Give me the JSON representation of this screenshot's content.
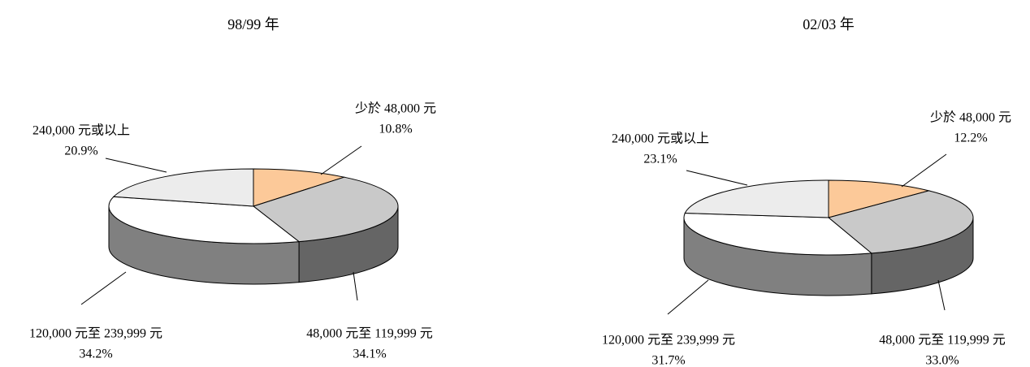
{
  "chart_data": [
    {
      "type": "pie",
      "title": "98/99 年",
      "categories": [
        "少於 48,000 元",
        "48,000 元至 119,999 元",
        "120,000 元至 239,999 元",
        "240,000 元或以上"
      ],
      "values": [
        10.8,
        34.1,
        34.2,
        20.9
      ],
      "value_labels": [
        "10.8%",
        "34.1%",
        "34.2%",
        "20.9%"
      ],
      "colors": [
        "#fcc999",
        "#c9c9c9",
        "#ffffff",
        "#ececec"
      ]
    },
    {
      "type": "pie",
      "title": "02/03 年",
      "categories": [
        "少於 48,000 元",
        "48,000 元至 119,999 元",
        "120,000 元至 239,999 元",
        "240,000 元或以上"
      ],
      "values": [
        12.2,
        33.0,
        31.7,
        23.1
      ],
      "value_labels": [
        "12.2%",
        "33.0%",
        "31.7%",
        "23.1%"
      ],
      "colors": [
        "#fcc999",
        "#c9c9c9",
        "#ffffff",
        "#ececec"
      ]
    }
  ]
}
